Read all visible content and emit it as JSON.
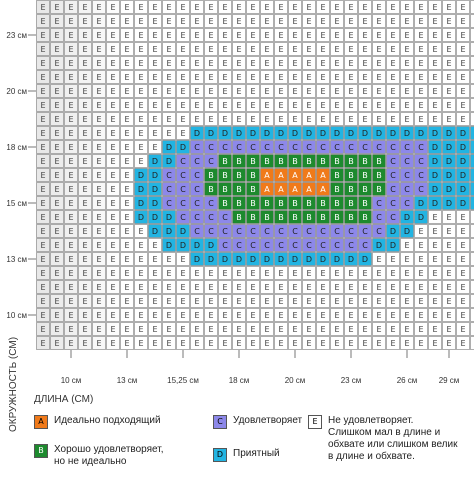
{
  "chart_data": {
    "type": "heatmap",
    "xlabel": "ДЛИНА (СМ)",
    "ylabel": "ОКРУЖНОСТЬ (СМ)",
    "x_ticks": [
      "10 см",
      "13 см",
      "15,25 см",
      "18 см",
      "20 см",
      "23 см",
      "26 см",
      "29 см"
    ],
    "y_ticks": [
      "23 см",
      "20 см",
      "18 см",
      "15 см",
      "13 см",
      "10 см"
    ],
    "rows_top_to_bottom": [
      "EEEEEEEEEEEEEEEEEEEEEEEEEEEEEEEE",
      "EEEEEEEEEEEEEEEEEEEEEEEEEEEEEEEE",
      "EEEEEEEEEEEEEEEEEEEEEEEEEEEEEEEE",
      "EEEEEEEEEEEEEEEEEEEEEEEEEEEEEEEE",
      "EEEEEEEEEEEEEEEEEEEEEEEEEEEEEEEE",
      "EEEEEEEEEEEEEEEEEEEEEEEEEEEEEEEE",
      "EEEEEEEEEEEEEEEEEEEEEEEEEEEEEEEE",
      "EEEEEEEEEEEEEEEEEEEEEEEEEEEEEEEE",
      "EEEEEEEEEEEEEEEEEEEEEEEEEEEEEEEE",
      "EEEEEEEEEEEDDDDDDDDDDDDDDDDDDDDD",
      "EEEEEEEEEDDCCCCCCCCCCCCCCCCCDDDD",
      "EEEEEEEEDDCCCBBBBBBBBBBBBCCCDDDD",
      "EEEEEEEDDCCCBBBBAAAAABBBBCCCDDDD",
      "EEEEEEEDDCCCBBBBAAAAABBBBCCCDDDD",
      "EEEEEEEDDCCCCBBBBBBBBBBBCCCDDDDD",
      "EEEEEEEDDDCCCCBBBBBBBBBBCCDDEEEE",
      "EEEEEEEEDDDCCCCCCCCCCCCCCDDEEEEE",
      "EEEEEEEEEDDDDCCCCCCCCCCCDDEEEEEE",
      "EEEEEEEEEEEDDDDDDDDDDDDDEEEEEEEE",
      "EEEEEEEEEEEEEEEEEEEEEEEEEEEEEEEE",
      "EEEEEEEEEEEEEEEEEEEEEEEEEEEEEEEE",
      "EEEEEEEEEEEEEEEEEEEEEEEEEEEEEEEE",
      "EEEEEEEEEEEEEEEEEEEEEEEEEEEEEEEE",
      "EEEEEEEEEEEEEEEEEEEEEEEEEEEEEEEE",
      "EEEEEEEEEEEEEEEEEEEEEEEEEEEEEEEE"
    ],
    "categories": {
      "A": {
        "label": "Идеально подходящий",
        "color": "#f07a1a"
      },
      "B": {
        "label": "Хорошо удовлетворяет,\nно не идеально",
        "color": "#1d8a2e"
      },
      "C": {
        "label": "Удовлетворяет",
        "color": "#8d88ea"
      },
      "D": {
        "label": "Приятный",
        "color": "#22b4e2"
      },
      "E": {
        "label": "Не удовлетворяет.\nСлишком мал в длине и\nобхвате или слишком велик\nв длине и обхвате.",
        "color": "#ffffff"
      }
    },
    "grid": true,
    "legend_position": "bottom"
  }
}
